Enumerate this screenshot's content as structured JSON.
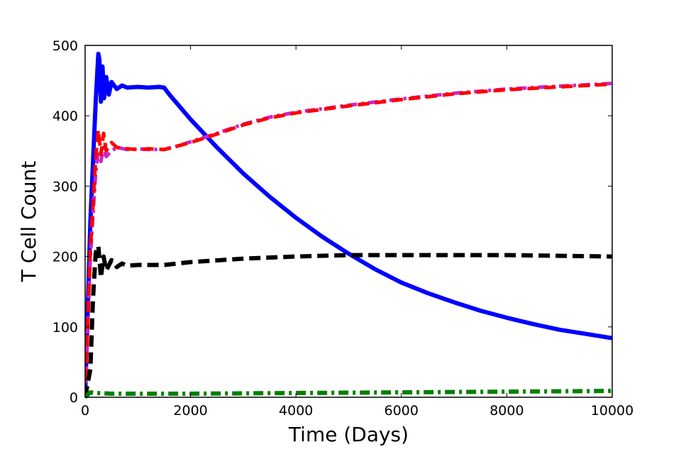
{
  "chart_data": {
    "type": "line",
    "title": "",
    "xlabel": "Time (Days)",
    "ylabel": "T Cell Count",
    "xlim": [
      0,
      10000
    ],
    "ylim": [
      0,
      500
    ],
    "x_ticks": [
      0,
      2000,
      4000,
      6000,
      8000,
      10000
    ],
    "y_ticks": [
      0,
      100,
      200,
      300,
      400,
      500
    ],
    "x_tick_labels": [
      "0",
      "2000",
      "4000",
      "6000",
      "8000",
      "10000"
    ],
    "y_tick_labels": [
      "0",
      "100",
      "200",
      "300",
      "400",
      "500"
    ],
    "grid": false,
    "legend": "none",
    "series": [
      {
        "style": "solid",
        "color": "#0000ff",
        "width": 6,
        "x": [
          0,
          100,
          200,
          250,
          270,
          300,
          330,
          360,
          400,
          450,
          500,
          600,
          700,
          800,
          1000,
          1200,
          1400,
          1500,
          1600,
          2000,
          2500,
          3000,
          3500,
          4000,
          4500,
          5000,
          5500,
          6000,
          6500,
          7000,
          7500,
          8000,
          8500,
          9000,
          9500,
          10000
        ],
        "y": [
          0,
          250,
          420,
          488,
          480,
          420,
          470,
          425,
          455,
          430,
          448,
          438,
          443,
          440,
          441,
          440,
          441,
          440,
          430,
          395,
          355,
          318,
          285,
          255,
          228,
          204,
          182,
          163,
          148,
          135,
          123,
          113,
          104,
          96,
          90,
          84
        ]
      },
      {
        "style": "dashdot",
        "color": "#cc22cc",
        "width": 5,
        "x": [
          0,
          100,
          200,
          250,
          300,
          350,
          400,
          500,
          600,
          800,
          1000,
          1200,
          1500,
          1800,
          2000,
          2500,
          3000,
          3500,
          4000,
          5000,
          6000,
          7000,
          8000,
          9000,
          10000
        ],
        "y": [
          0,
          200,
          320,
          350,
          335,
          355,
          342,
          350,
          355,
          352,
          353,
          352,
          352,
          358,
          363,
          375,
          388,
          398,
          405,
          415,
          424,
          432,
          438,
          442,
          446
        ]
      },
      {
        "style": "dashed",
        "color": "#ff0000",
        "width": 5,
        "x": [
          0,
          100,
          200,
          250,
          300,
          350,
          400,
          500,
          600,
          800,
          1000,
          1200,
          1500,
          1800,
          2000,
          2500,
          3000,
          3500,
          4000,
          5000,
          6000,
          7000,
          8000,
          9000,
          10000
        ],
        "y": [
          0,
          210,
          340,
          380,
          345,
          375,
          350,
          362,
          355,
          353,
          352,
          353,
          352,
          358,
          362,
          374,
          387,
          397,
          404,
          414,
          423,
          431,
          437,
          441,
          445
        ]
      },
      {
        "style": "dashed",
        "color": "#000000",
        "width": 6,
        "x": [
          0,
          100,
          150,
          200,
          250,
          300,
          350,
          400,
          500,
          600,
          700,
          800,
          1000,
          1200,
          1500,
          2000,
          3000,
          4000,
          5000,
          6000,
          7000,
          8000,
          9000,
          10000
        ],
        "y": [
          0,
          40,
          140,
          205,
          215,
          170,
          200,
          180,
          195,
          185,
          190,
          187,
          188,
          188,
          188,
          192,
          197,
          200,
          202,
          202,
          202,
          202,
          201,
          200
        ]
      },
      {
        "style": "dashdot",
        "color": "#008000",
        "width": 6,
        "x": [
          0,
          100,
          200,
          500,
          1000,
          2000,
          4000,
          6000,
          8000,
          10000
        ],
        "y": [
          0,
          7,
          6,
          5,
          5,
          5,
          6,
          7,
          8,
          9
        ]
      }
    ]
  }
}
